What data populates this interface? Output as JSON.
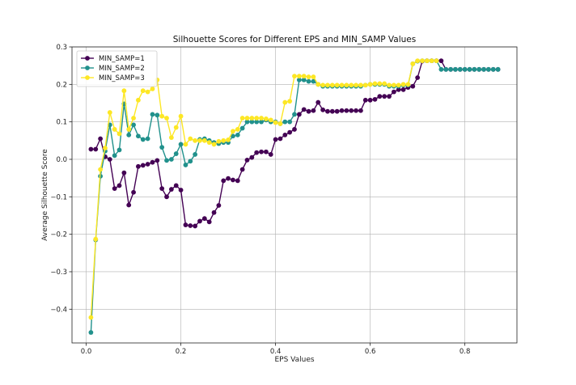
{
  "chart_data": {
    "type": "line",
    "title": "Silhouette Scores for Different EPS and MIN_SAMP Values",
    "xlabel": "EPS Values",
    "ylabel": "Average Silhouette Score",
    "xlim": [
      -0.03,
      0.91
    ],
    "ylim": [
      -0.49,
      0.3
    ],
    "xticks": [
      0.0,
      0.2,
      0.4,
      0.6,
      0.8
    ],
    "xtick_labels": [
      "0.0",
      "0.2",
      "0.4",
      "0.6",
      "0.8"
    ],
    "yticks": [
      -0.4,
      -0.3,
      -0.2,
      -0.1,
      0.0,
      0.1,
      0.2,
      0.3
    ],
    "ytick_labels": [
      "−0.4",
      "−0.3",
      "−0.2",
      "−0.1",
      "0.0",
      "0.1",
      "0.2",
      "0.3"
    ],
    "grid": true,
    "legend_position": "top-left",
    "series": [
      {
        "name": "MIN_SAMP=1",
        "color": "#440154",
        "x": [
          0.01,
          0.02,
          0.03,
          0.04,
          0.05,
          0.06,
          0.07,
          0.08,
          0.09,
          0.1,
          0.11,
          0.12,
          0.13,
          0.14,
          0.15,
          0.16,
          0.17,
          0.18,
          0.19,
          0.2,
          0.21,
          0.22,
          0.23,
          0.24,
          0.25,
          0.26,
          0.27,
          0.28,
          0.29,
          0.3,
          0.31,
          0.32,
          0.33,
          0.34,
          0.35,
          0.36,
          0.37,
          0.38,
          0.39,
          0.4,
          0.41,
          0.42,
          0.43,
          0.44,
          0.45,
          0.46,
          0.47,
          0.48,
          0.49,
          0.5,
          0.51,
          0.52,
          0.53,
          0.54,
          0.55,
          0.56,
          0.57,
          0.58,
          0.59,
          0.6,
          0.61,
          0.62,
          0.63,
          0.64,
          0.65,
          0.66,
          0.67,
          0.68,
          0.69,
          0.7,
          0.71,
          0.72,
          0.73,
          0.74,
          0.75,
          0.76,
          0.77,
          0.78,
          0.79,
          0.8,
          0.81,
          0.82,
          0.83,
          0.84,
          0.85,
          0.86,
          0.87
        ],
        "y": [
          0.027,
          0.027,
          0.055,
          0.007,
          0.0,
          -0.078,
          -0.07,
          -0.036,
          -0.122,
          -0.088,
          -0.019,
          -0.016,
          -0.013,
          -0.008,
          -0.003,
          -0.078,
          -0.1,
          -0.08,
          -0.07,
          -0.082,
          -0.175,
          -0.177,
          -0.178,
          -0.165,
          -0.158,
          -0.167,
          -0.142,
          -0.123,
          -0.057,
          -0.051,
          -0.055,
          -0.057,
          -0.027,
          -0.002,
          0.005,
          0.018,
          0.02,
          0.02,
          0.013,
          0.053,
          0.055,
          0.065,
          0.072,
          0.08,
          0.12,
          0.133,
          0.128,
          0.13,
          0.152,
          0.132,
          0.128,
          0.128,
          0.128,
          0.13,
          0.13,
          0.13,
          0.13,
          0.13,
          0.158,
          0.158,
          0.16,
          0.168,
          0.168,
          0.168,
          0.18,
          0.186,
          0.186,
          0.192,
          0.195,
          0.218,
          0.262,
          0.263,
          0.263,
          0.263,
          0.263,
          0.24,
          0.24,
          0.24,
          0.24,
          0.24,
          0.24,
          0.24,
          0.24,
          0.24,
          0.24,
          0.24,
          0.24
        ]
      },
      {
        "name": "MIN_SAMP=2",
        "color": "#21918c",
        "x": [
          0.01,
          0.02,
          0.03,
          0.04,
          0.05,
          0.06,
          0.07,
          0.08,
          0.09,
          0.1,
          0.11,
          0.12,
          0.13,
          0.14,
          0.15,
          0.16,
          0.17,
          0.18,
          0.19,
          0.2,
          0.21,
          0.22,
          0.23,
          0.24,
          0.25,
          0.26,
          0.27,
          0.28,
          0.29,
          0.3,
          0.31,
          0.32,
          0.33,
          0.34,
          0.35,
          0.36,
          0.37,
          0.38,
          0.39,
          0.4,
          0.41,
          0.42,
          0.43,
          0.44,
          0.45,
          0.46,
          0.47,
          0.48,
          0.49,
          0.5,
          0.51,
          0.52,
          0.53,
          0.54,
          0.55,
          0.56,
          0.57,
          0.58,
          0.59,
          0.6,
          0.61,
          0.62,
          0.63,
          0.64,
          0.65,
          0.66,
          0.67,
          0.68,
          0.69,
          0.7,
          0.71,
          0.72,
          0.73,
          0.74,
          0.75,
          0.76,
          0.77,
          0.78,
          0.79,
          0.8,
          0.81,
          0.82,
          0.83,
          0.84,
          0.85,
          0.86,
          0.87
        ],
        "y": [
          -0.462,
          -0.215,
          -0.045,
          0.022,
          0.092,
          0.01,
          0.025,
          0.148,
          0.065,
          0.092,
          0.062,
          0.053,
          0.055,
          0.12,
          0.118,
          0.032,
          -0.003,
          0.0,
          0.015,
          0.04,
          -0.015,
          -0.005,
          0.013,
          0.053,
          0.055,
          0.05,
          0.045,
          0.042,
          0.045,
          0.045,
          0.062,
          0.065,
          0.083,
          0.1,
          0.1,
          0.1,
          0.1,
          0.105,
          0.1,
          0.1,
          0.095,
          0.1,
          0.1,
          0.12,
          0.212,
          0.212,
          0.208,
          0.208,
          0.2,
          0.195,
          0.195,
          0.195,
          0.195,
          0.195,
          0.195,
          0.195,
          0.195,
          0.195,
          0.198,
          0.2,
          0.2,
          0.2,
          0.2,
          0.195,
          0.195,
          0.195,
          0.198,
          0.198,
          0.255,
          0.262,
          0.263,
          0.263,
          0.263,
          0.263,
          0.24,
          0.24,
          0.24,
          0.24,
          0.24,
          0.24,
          0.24,
          0.24,
          0.24,
          0.24,
          0.24,
          0.24,
          0.24
        ]
      },
      {
        "name": "MIN_SAMP=3",
        "color": "#fde725",
        "x": [
          0.01,
          0.02,
          0.03,
          0.04,
          0.05,
          0.06,
          0.07,
          0.08,
          0.09,
          0.1,
          0.11,
          0.12,
          0.13,
          0.14,
          0.15,
          0.16,
          0.17,
          0.18,
          0.19,
          0.2,
          0.21,
          0.22,
          0.23,
          0.24,
          0.25,
          0.26,
          0.27,
          0.28,
          0.29,
          0.3,
          0.31,
          0.32,
          0.33,
          0.34,
          0.35,
          0.36,
          0.37,
          0.38,
          0.39,
          0.4,
          0.41,
          0.42,
          0.43,
          0.44,
          0.45,
          0.46,
          0.47,
          0.48,
          0.49,
          0.5,
          0.51,
          0.52,
          0.53,
          0.54,
          0.55,
          0.56,
          0.57,
          0.58,
          0.59,
          0.6,
          0.61,
          0.62,
          0.63,
          0.64,
          0.65,
          0.66,
          0.67,
          0.68,
          0.69,
          0.7,
          0.71,
          0.72,
          0.73,
          0.74
        ],
        "y": [
          -0.422,
          -0.213,
          -0.027,
          0.03,
          0.125,
          0.08,
          0.068,
          0.183,
          0.08,
          0.11,
          0.158,
          0.183,
          0.18,
          0.188,
          0.212,
          0.115,
          0.11,
          0.058,
          0.085,
          0.115,
          0.04,
          0.055,
          0.05,
          0.05,
          0.05,
          0.045,
          0.04,
          0.048,
          0.05,
          0.052,
          0.075,
          0.08,
          0.11,
          0.11,
          0.11,
          0.11,
          0.11,
          0.108,
          0.105,
          0.098,
          0.095,
          0.152,
          0.155,
          0.222,
          0.222,
          0.222,
          0.22,
          0.22,
          0.2,
          0.198,
          0.198,
          0.198,
          0.198,
          0.198,
          0.198,
          0.198,
          0.198,
          0.198,
          0.198,
          0.2,
          0.202,
          0.202,
          0.202,
          0.198,
          0.198,
          0.198,
          0.2,
          0.2,
          0.255,
          0.263,
          0.263,
          0.263,
          0.263,
          0.263
        ]
      }
    ]
  }
}
